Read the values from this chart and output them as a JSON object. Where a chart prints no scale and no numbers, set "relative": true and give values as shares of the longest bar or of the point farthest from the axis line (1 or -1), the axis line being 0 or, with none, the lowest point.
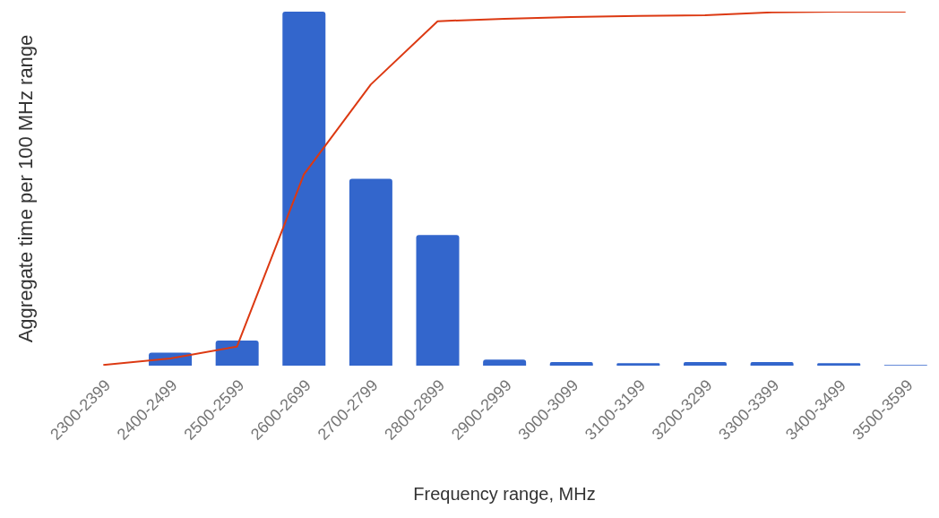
{
  "chart_data": {
    "type": "bar",
    "relative": true,
    "xlabel": "Frequency range, MHz",
    "ylabel": "Aggregate time per 100 MHz range",
    "categories": [
      "2300-2399",
      "2400-2499",
      "2500-2599",
      "2600-2699",
      "2700-2799",
      "2800-2899",
      "2900-2999",
      "3000-3099",
      "3100-3199",
      "3200-3299",
      "3300-3399",
      "3400-3499",
      "3500-3599"
    ],
    "series": [
      {
        "color": "#3366cc",
        "values": [
          0,
          0.037,
          0.071,
          1,
          0.528,
          0.369,
          0.017,
          0.01,
          0.007,
          0.01,
          0.01,
          0.007,
          0.002
        ]
      },
      {
        "type": "line",
        "color": "#dc3912",
        "values": [
          0.002,
          0.02,
          0.054,
          0.54,
          0.794,
          0.973,
          0.98,
          0.985,
          0.988,
          0.99,
          0.998,
          1,
          1
        ]
      }
    ],
    "grid": false,
    "legend": false
  }
}
